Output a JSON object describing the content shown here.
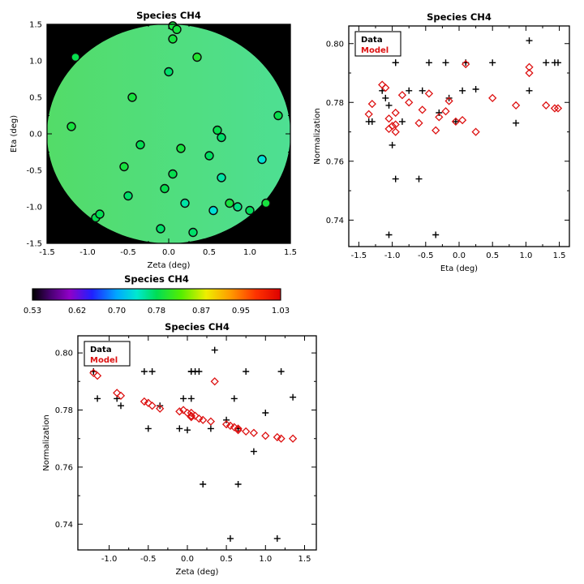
{
  "figure": {
    "background": "#ffffff",
    "axis_color": "#000000"
  },
  "chart_data": [
    {
      "id": "map",
      "type": "scatter",
      "title": "Species CH4",
      "xlabel": "Zeta (deg)",
      "ylabel": "Eta (deg)",
      "xlim": [
        -1.5,
        1.5
      ],
      "ylim": [
        -1.5,
        1.5
      ],
      "xticks": [
        "-1.5",
        "-1.0",
        "-0.5",
        "0.0",
        "0.5",
        "1.0",
        "1.5"
      ],
      "yticks": [
        "-1.5",
        "-1.0",
        "-0.5",
        "0.0",
        "0.5",
        "1.0",
        "1.5"
      ],
      "background": "#000000",
      "field": {
        "shape": "circle",
        "center": [
          0,
          0
        ],
        "radius": 1.5,
        "gradient": [
          "#53dc68",
          "#4edf93"
        ]
      },
      "marker": {
        "shape": "open-circle",
        "stroke": "#0a0a0a",
        "color_by": "data_norm"
      }
    },
    {
      "id": "colorbar",
      "type": "colorbar",
      "title": "Species CH4",
      "range": [
        0.53,
        1.03
      ],
      "ticks": [
        "0.53",
        "0.62",
        "0.70",
        "0.78",
        "0.87",
        "0.95",
        "1.03"
      ],
      "stops": [
        [
          0.0,
          "#000000"
        ],
        [
          0.07,
          "#46006e"
        ],
        [
          0.15,
          "#9000c8"
        ],
        [
          0.24,
          "#2020ff"
        ],
        [
          0.34,
          "#00a8ff"
        ],
        [
          0.42,
          "#00e8d0"
        ],
        [
          0.5,
          "#00dd55"
        ],
        [
          0.6,
          "#55ee00"
        ],
        [
          0.7,
          "#eeee00"
        ],
        [
          0.8,
          "#ff9900"
        ],
        [
          0.9,
          "#ff3300"
        ],
        [
          1.0,
          "#dd0000"
        ]
      ]
    },
    {
      "id": "norm_vs_eta",
      "type": "scatter",
      "title": "Species CH4",
      "xlabel": "Eta (deg)",
      "ylabel": "Normalization",
      "xkey": "eta",
      "xlim": [
        -1.65,
        1.65
      ],
      "ylim": [
        0.731,
        0.806
      ],
      "xticks": [
        "-1.5",
        "-1.0",
        "-0.5",
        "0.0",
        "0.5",
        "1.0",
        "1.5"
      ],
      "yticks": [
        "0.74",
        "0.76",
        "0.78",
        "0.80"
      ],
      "legend": {
        "data_label": "Data",
        "model_label": "Model"
      },
      "series_colors": {
        "data": "#000000",
        "model": "#dd1111"
      }
    },
    {
      "id": "norm_vs_zeta",
      "type": "scatter",
      "title": "Species CH4",
      "xlabel": "Zeta (deg)",
      "ylabel": "Normalization",
      "xkey": "zeta",
      "xlim": [
        -1.4,
        1.65
      ],
      "ylim": [
        0.731,
        0.806
      ],
      "xticks": [
        "-1.0",
        "-0.5",
        "0.0",
        "0.5",
        "1.0",
        "1.5"
      ],
      "yticks": [
        "0.74",
        "0.76",
        "0.78",
        "0.80"
      ],
      "legend": {
        "data_label": "Data",
        "model_label": "Model"
      },
      "series_colors": {
        "data": "#000000",
        "model": "#dd1111"
      }
    }
  ],
  "points": {
    "columns": [
      "zeta",
      "eta",
      "data_norm",
      "model_norm"
    ],
    "rows": [
      [
        -1.2,
        0.1,
        0.7935,
        0.793
      ],
      [
        -1.15,
        1.05,
        0.784,
        0.792
      ],
      [
        -0.9,
        -1.15,
        0.784,
        0.786
      ],
      [
        -0.85,
        -1.1,
        0.7815,
        0.785
      ],
      [
        -0.55,
        -0.45,
        0.7935,
        0.783
      ],
      [
        -0.5,
        -0.85,
        0.7735,
        0.7825
      ],
      [
        -0.45,
        0.5,
        0.7935,
        0.7815
      ],
      [
        -0.35,
        -0.15,
        0.7815,
        0.7805
      ],
      [
        -0.1,
        -1.3,
        0.7735,
        0.7795
      ],
      [
        -0.05,
        -0.75,
        0.784,
        0.78
      ],
      [
        0.0,
        0.85,
        0.773,
        0.779
      ],
      [
        0.05,
        1.48,
        0.7935,
        0.778
      ],
      [
        0.05,
        1.3,
        0.7935,
        0.779
      ],
      [
        0.05,
        -0.55,
        0.784,
        0.7775
      ],
      [
        0.1,
        1.43,
        0.7935,
        0.778
      ],
      [
        0.15,
        -0.2,
        0.7935,
        0.777
      ],
      [
        0.2,
        -0.95,
        0.754,
        0.7765
      ],
      [
        0.3,
        -1.35,
        0.7735,
        0.776
      ],
      [
        0.35,
        1.05,
        0.801,
        0.79
      ],
      [
        0.5,
        -0.3,
        0.7765,
        0.775
      ],
      [
        0.55,
        -1.05,
        0.735,
        0.7745
      ],
      [
        0.6,
        0.05,
        0.784,
        0.774
      ],
      [
        0.65,
        -0.05,
        0.7735,
        0.7735
      ],
      [
        0.65,
        -0.6,
        0.754,
        0.773
      ],
      [
        0.75,
        -0.95,
        0.7935,
        0.7725
      ],
      [
        0.85,
        -1.0,
        0.7655,
        0.772
      ],
      [
        1.0,
        -1.05,
        0.779,
        0.771
      ],
      [
        1.15,
        -0.35,
        0.735,
        0.7705
      ],
      [
        1.2,
        -0.95,
        0.7935,
        0.77
      ],
      [
        1.35,
        0.25,
        0.7845,
        0.77
      ]
    ]
  }
}
